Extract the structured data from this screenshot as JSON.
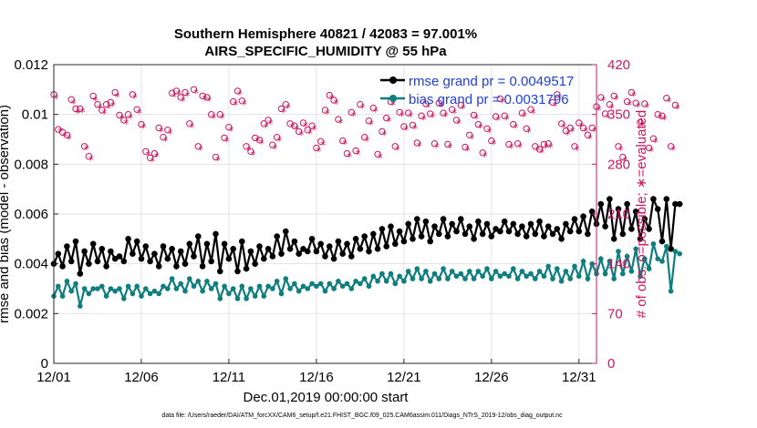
{
  "chart_data": {
    "type": "line",
    "title": "Southern Hemisphere 40821 / 42083 = 97.001%",
    "subtitle": "AIRS_SPECIFIC_HUMIDITY @ 55 hPa",
    "xlabel": "Dec.01,2019 00:00:00 start",
    "ylabel": "rmse and bias (model - observation)",
    "y2label": "# of obs: o=possible; ∗=evaluated",
    "footnote": "data file: /Users/raeder/DAI/ATM_forcXX/CAM6_setup/f.e21.FHIST_BGC.f09_025.CAM6assim.011/Diags_NTrS_2019-12/obs_diag_output.nc",
    "xlim": [
      0,
      31
    ],
    "ylim": [
      0,
      0.012
    ],
    "y2lim": [
      0,
      420
    ],
    "x_ticks": [
      0,
      5,
      10,
      15,
      20,
      25,
      30
    ],
    "x_tick_labels": [
      "12/01",
      "12/06",
      "12/11",
      "12/16",
      "12/21",
      "12/26",
      "12/31"
    ],
    "y_ticks": [
      0,
      0.002,
      0.004,
      0.006,
      0.008,
      0.01,
      0.012
    ],
    "y_tick_labels": [
      "0",
      "0.002",
      "0.004",
      "0.006",
      "0.008",
      "0.01",
      "0.012"
    ],
    "y2_ticks": [
      0,
      70,
      140,
      210,
      280,
      350,
      420
    ],
    "y2_tick_labels": [
      "0",
      "70",
      "140",
      "210",
      "280",
      "350",
      "420"
    ],
    "grid": true,
    "legend_position": "top-right",
    "series": [
      {
        "name": "rmse grand pr = 0.0049517",
        "legend_label": "rmse grand pr = 0.0049517",
        "color": "#000000",
        "marker": "asterisk",
        "axis": "left",
        "x_start": 0,
        "x_step": 0.25,
        "values": [
          0.004,
          0.0044,
          0.0039,
          0.0047,
          0.0041,
          0.0049,
          0.0036,
          0.0045,
          0.004,
          0.0048,
          0.0041,
          0.0046,
          0.0039,
          0.0045,
          0.0042,
          0.0043,
          0.0041,
          0.005,
          0.0044,
          0.0049,
          0.0042,
          0.0047,
          0.0041,
          0.0044,
          0.0039,
          0.0047,
          0.0042,
          0.0046,
          0.0039,
          0.0045,
          0.004,
          0.0048,
          0.0043,
          0.0051,
          0.0039,
          0.0048,
          0.0041,
          0.0052,
          0.0037,
          0.0048,
          0.0042,
          0.0046,
          0.0037,
          0.0049,
          0.0038,
          0.0045,
          0.004,
          0.0047,
          0.0042,
          0.0046,
          0.0043,
          0.0051,
          0.0044,
          0.0053,
          0.0046,
          0.0049,
          0.0044,
          0.0046,
          0.0045,
          0.005,
          0.0045,
          0.0048,
          0.0043,
          0.0047,
          0.0042,
          0.0049,
          0.0044,
          0.0048,
          0.0043,
          0.005,
          0.0046,
          0.0051,
          0.0045,
          0.0052,
          0.0046,
          0.0054,
          0.0047,
          0.0055,
          0.0048,
          0.0053,
          0.0049,
          0.0056,
          0.005,
          0.0058,
          0.0051,
          0.0057,
          0.0049,
          0.0055,
          0.0052,
          0.0058,
          0.0051,
          0.0056,
          0.0053,
          0.0058,
          0.0052,
          0.0055,
          0.005,
          0.0057,
          0.0052,
          0.0056,
          0.0051,
          0.0054,
          0.0053,
          0.0057,
          0.0053,
          0.0056,
          0.0052,
          0.0055,
          0.0051,
          0.0056,
          0.0052,
          0.0057,
          0.0051,
          0.0055,
          0.0052,
          0.0054,
          0.005,
          0.0056,
          0.0053,
          0.0058,
          0.0053,
          0.0059,
          0.0052,
          0.0061,
          0.0056,
          0.0064,
          0.0055,
          0.0066,
          0.005,
          0.0062,
          0.0052,
          0.0064,
          0.0054,
          0.0061,
          0.005,
          0.0058,
          0.0054,
          0.0066,
          0.0062,
          0.0049,
          0.0066,
          0.0046,
          0.0064,
          0.0064
        ]
      },
      {
        "name": "bias grand pr = 0.0031796",
        "legend_label": "bias grand pr = 0.0031796",
        "color": "#0e7e7e",
        "marker": "dot",
        "axis": "left",
        "x_start": 0,
        "x_step": 0.25,
        "values": [
          0.0027,
          0.0031,
          0.0027,
          0.0033,
          0.0029,
          0.0032,
          0.0023,
          0.003,
          0.0028,
          0.003,
          0.003,
          0.0031,
          0.0027,
          0.003,
          0.0029,
          0.003,
          0.0026,
          0.0031,
          0.0028,
          0.0031,
          0.0027,
          0.003,
          0.0028,
          0.0029,
          0.0028,
          0.0031,
          0.003,
          0.0034,
          0.003,
          0.0032,
          0.0029,
          0.0034,
          0.0031,
          0.0033,
          0.0029,
          0.0033,
          0.003,
          0.0032,
          0.0026,
          0.0031,
          0.0028,
          0.003,
          0.0026,
          0.0031,
          0.0026,
          0.003,
          0.0027,
          0.0031,
          0.0027,
          0.0031,
          0.003,
          0.0033,
          0.0028,
          0.0034,
          0.003,
          0.0032,
          0.0029,
          0.0031,
          0.003,
          0.0032,
          0.0031,
          0.0032,
          0.0029,
          0.0032,
          0.003,
          0.0033,
          0.0031,
          0.0032,
          0.003,
          0.0033,
          0.0032,
          0.0034,
          0.0031,
          0.0035,
          0.0033,
          0.0036,
          0.0033,
          0.0036,
          0.0032,
          0.0035,
          0.0033,
          0.0037,
          0.0034,
          0.0038,
          0.0034,
          0.0037,
          0.0033,
          0.0036,
          0.0034,
          0.0038,
          0.0034,
          0.0037,
          0.0035,
          0.0036,
          0.0034,
          0.0037,
          0.0034,
          0.0037,
          0.0035,
          0.0038,
          0.0034,
          0.0037,
          0.0035,
          0.0036,
          0.0035,
          0.0038,
          0.0034,
          0.0037,
          0.0035,
          0.0036,
          0.0034,
          0.0037,
          0.0035,
          0.0039,
          0.0034,
          0.0038,
          0.0033,
          0.0037,
          0.0034,
          0.0039,
          0.0035,
          0.0041,
          0.0034,
          0.004,
          0.0036,
          0.0042,
          0.0036,
          0.0041,
          0.0034,
          0.0045,
          0.0036,
          0.0043,
          0.0037,
          0.0046,
          0.0035,
          0.0042,
          0.0038,
          0.0048,
          0.0042,
          0.0041,
          0.0047,
          0.0029,
          0.0045,
          0.0044
        ]
      }
    ],
    "obs_possible": {
      "name": "possible",
      "color": "#cc1660",
      "marker": "circle",
      "axis": "right",
      "x_start": 0,
      "x_step": 0.25,
      "values": [
        378,
        329,
        325,
        321,
        371,
        358,
        358,
        305,
        291,
        376,
        364,
        356,
        364,
        367,
        381,
        349,
        342,
        350,
        378,
        357,
        336,
        298,
        289,
        295,
        331,
        318,
        328,
        380,
        383,
        374,
        381,
        337,
        385,
        305,
        376,
        374,
        350,
        290,
        350,
        317,
        332,
        368,
        383,
        369,
        305,
        298,
        317,
        314,
        337,
        342,
        307,
        318,
        358,
        364,
        337,
        334,
        326,
        338,
        328,
        334,
        303,
        312,
        356,
        377,
        370,
        343,
        313,
        295,
        353,
        299,
        364,
        318,
        341,
        359,
        294,
        326,
        345,
        368,
        305,
        353,
        333,
        352,
        335,
        310,
        348,
        365,
        351,
        309,
        366,
        352,
        308,
        357,
        342,
        363,
        304,
        321,
        349,
        336,
        296,
        330,
        313,
        347,
        372,
        348,
        308,
        336,
        309,
        352,
        330,
        357,
        305,
        301,
        308,
        309,
        367,
        378,
        337,
        327,
        331,
        305,
        338,
        331,
        321,
        331,
        361,
        374,
        351,
        364,
        376,
        305,
        290,
        368,
        381,
        366,
        339,
        365,
        303,
        316,
        350,
        348,
        373,
        305,
        363
      ]
    },
    "obs_evaluated": {
      "name": "evaluated",
      "color": "#cc1660",
      "marker": "asterisk",
      "axis": "right",
      "x_start": 0.125,
      "x_step": 0.25,
      "values": [
        373,
        327,
        320,
        316,
        366,
        353,
        354,
        302,
        287,
        371,
        360,
        352,
        360,
        363,
        376,
        345,
        338,
        346,
        374,
        353,
        332,
        294,
        285,
        291,
        327,
        314,
        324,
        376,
        379,
        370,
        377,
        333,
        381,
        301,
        372,
        370,
        346,
        286,
        346,
        313,
        328,
        364,
        379,
        365,
        301,
        294,
        313,
        310,
        333,
        338,
        303,
        314,
        354,
        360,
        333,
        330,
        322,
        334,
        324,
        330,
        299,
        308,
        352,
        373,
        366,
        339,
        309,
        291,
        349,
        295,
        360,
        314,
        337,
        355,
        290,
        322,
        341,
        364,
        301,
        349,
        329,
        348,
        331,
        306,
        344,
        361,
        347,
        305,
        362,
        348,
        304,
        353,
        338,
        359,
        300,
        317,
        345,
        332,
        292,
        326,
        309,
        343,
        368,
        344,
        304,
        332,
        305,
        348,
        326,
        353,
        301,
        297,
        304,
        305,
        363,
        374,
        333,
        323,
        327,
        301,
        334,
        327,
        317,
        327,
        357,
        370,
        347,
        360,
        372,
        301,
        286,
        364,
        377,
        362,
        335,
        361,
        299,
        312,
        346,
        344,
        369,
        301,
        359
      ]
    }
  }
}
